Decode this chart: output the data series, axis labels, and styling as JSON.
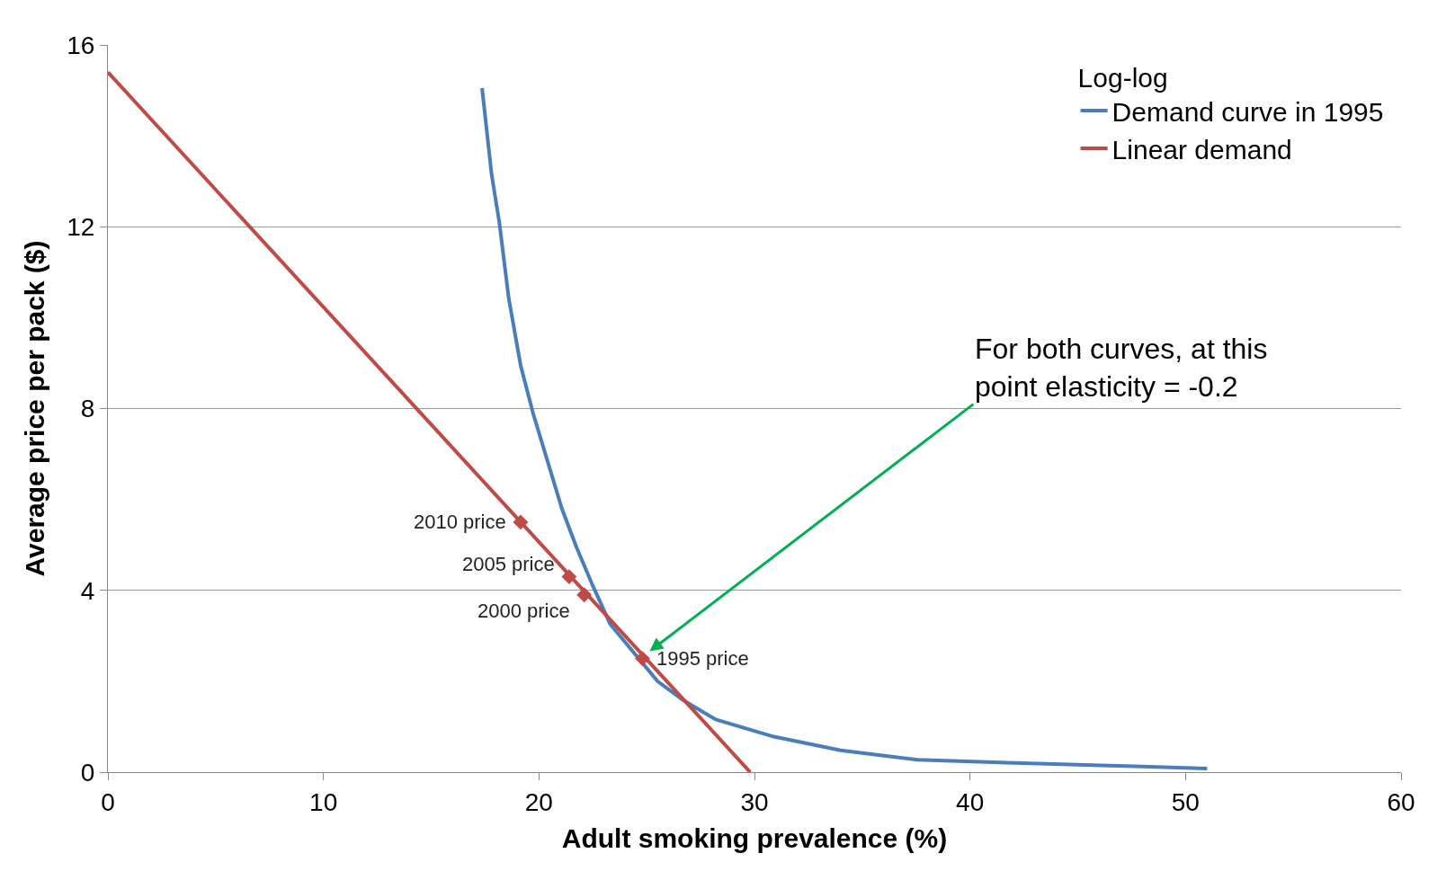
{
  "chart_data": {
    "type": "line",
    "xlabel": "Adult smoking prevalence (%)",
    "ylabel": "Average price per pack ($)",
    "xlim": [
      0,
      60
    ],
    "xticks": [
      0,
      10,
      20,
      30,
      40,
      50,
      60
    ],
    "ylim": [
      0,
      16
    ],
    "yticks": [
      0,
      4,
      8,
      12,
      16
    ],
    "grid": "y",
    "legend": "top right",
    "legend_title": "Log-log",
    "line_style": "solid",
    "series": [
      {
        "name": "Demand curve in 1995",
        "color": "#4a7ebb",
        "marker": "none",
        "x": [
          17.36,
          17.8,
          18.16,
          18.6,
          19.15,
          19.73,
          20.4,
          21.07,
          21.74,
          22.5,
          23.3,
          24.4,
          25.5,
          26.7,
          28.2,
          30.9,
          34.0,
          37.6,
          41.7,
          46.1,
          51.0
        ],
        "values": [
          15.05,
          13.16,
          12.1,
          10.42,
          8.95,
          7.89,
          6.84,
          5.79,
          4.95,
          4.1,
          3.26,
          2.63,
          2.0,
          1.58,
          1.16,
          0.78,
          0.48,
          0.27,
          0.21,
          0.15,
          0.08
        ]
      },
      {
        "name": "Linear demand",
        "color": "#be4b48",
        "marker": "none",
        "x": [
          0,
          29.8
        ],
        "values": [
          15.4,
          0
        ]
      },
      {
        "color": "#be4b48",
        "type": "scatter",
        "marker": "diamond",
        "x": [
          19.15,
          21.4,
          22.1,
          24.8
        ],
        "values": [
          5.5,
          4.3,
          3.9,
          2.5
        ]
      }
    ],
    "annotations": [
      {
        "text": "2010 price",
        "x": 19.15,
        "y": 5.5
      },
      {
        "text": "2005 price",
        "x": 21.4,
        "y": 4.3
      },
      {
        "text": "2000 price",
        "x": 22.1,
        "y": 3.9
      },
      {
        "text": "1995 price",
        "x": 24.8,
        "y": 2.5
      },
      "For both curves, at this point elasticity = -0.2"
    ]
  }
}
